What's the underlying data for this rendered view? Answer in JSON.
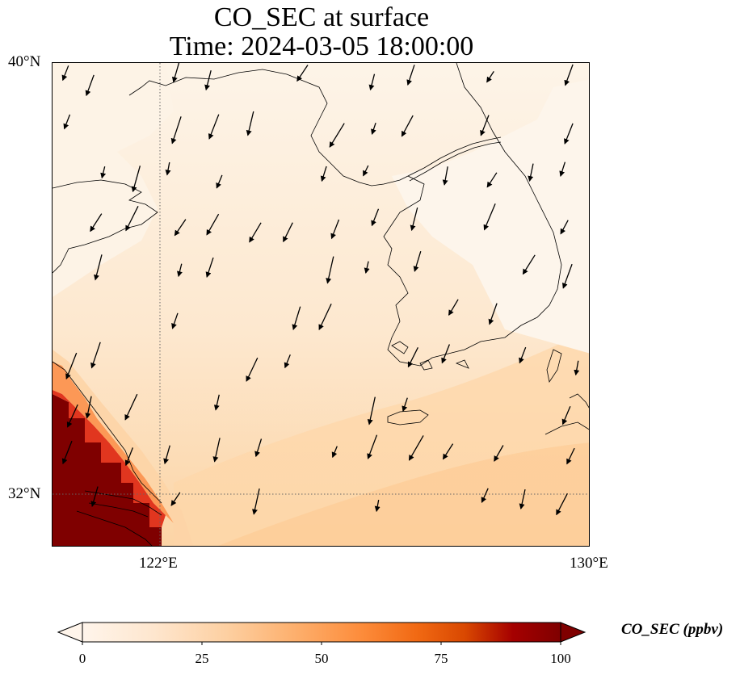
{
  "figure": {
    "title_line1": "CO_SEC at surface",
    "title_line2": "Time: 2024-03-05 18:00:00"
  },
  "map": {
    "extent": {
      "lon_min": 119.75,
      "lon_max": 130,
      "lat_min": 31,
      "lat_max": 40
    },
    "lat_ticks": [
      {
        "value": 40,
        "label": "40°N"
      },
      {
        "value": 32,
        "label": "32°N"
      }
    ],
    "lon_ticks": [
      {
        "value": 122,
        "label": "122°E"
      },
      {
        "value": 130,
        "label": "130°E"
      }
    ],
    "gridlines": {
      "lon": [
        122
      ],
      "lat": [
        32
      ],
      "style": "dotted"
    },
    "land_color": "#fdf5eb",
    "coastline_color": "#000000"
  },
  "field": {
    "variable": "CO_SEC",
    "level": "surface",
    "units": "ppbv",
    "high_value_region": "Yangtze River Delta near Shanghai (southwest corner), >100 ppbv",
    "moderate_region": "East China Sea / southern Yellow Sea, ~15-30 ppbv"
  },
  "wind_vectors": {
    "dominant_direction": "from north / north-northeast",
    "note": "arrows point to the south-southwest"
  },
  "colorbar": {
    "label": "CO_SEC (ppbv)",
    "min": 0,
    "max": 100,
    "extend": "both",
    "colormap": [
      "#fff5eb",
      "#fee6ce",
      "#fdd0a2",
      "#fdae6b",
      "#fd8d3c",
      "#f16913",
      "#d94801",
      "#a50000",
      "#7f0000"
    ],
    "tick_labels": [
      "0",
      "25",
      "50",
      "75",
      "100"
    ]
  }
}
